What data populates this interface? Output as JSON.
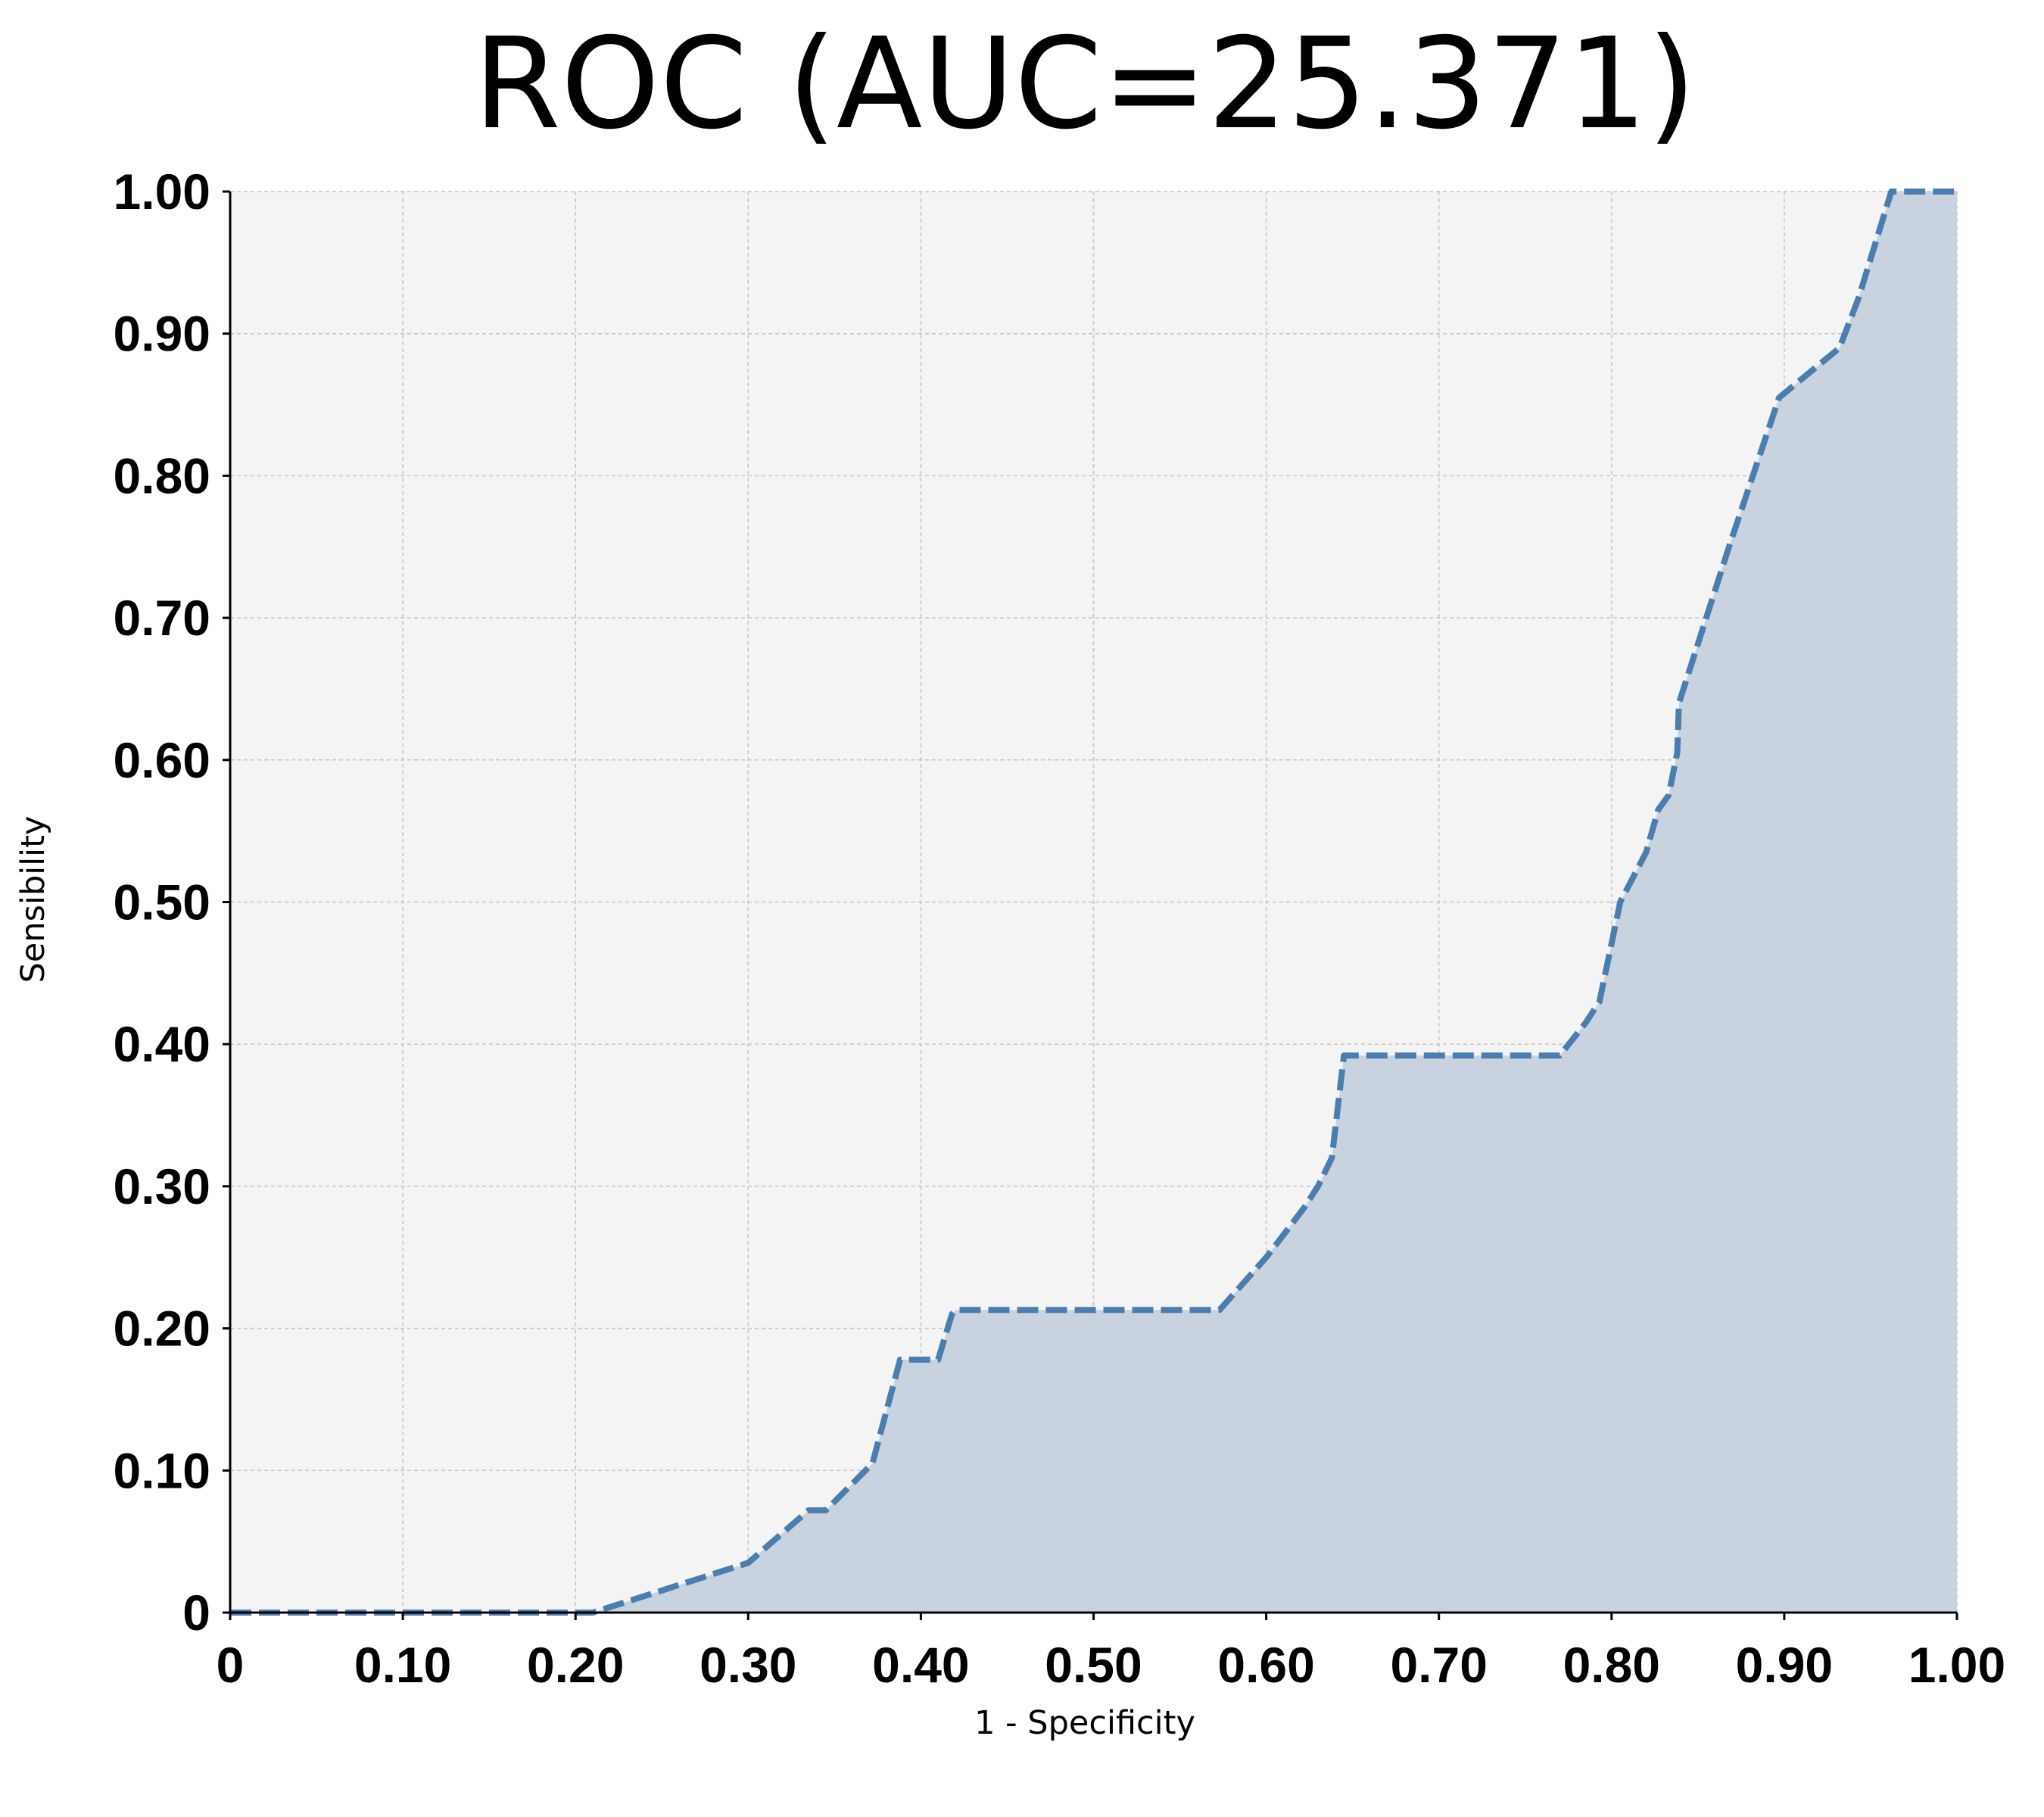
{
  "chart_data": {
    "type": "area",
    "title": "ROC (AUC=25.371)",
    "xlabel": "1 - Specificity",
    "ylabel": "Sensibility",
    "xlim": [
      0,
      1
    ],
    "ylim": [
      0,
      1
    ],
    "grid": true,
    "x_ticks": [
      "0",
      "0.10",
      "0.20",
      "0.30",
      "0.40",
      "0.50",
      "0.60",
      "0.70",
      "0.80",
      "0.90",
      "1.00"
    ],
    "y_ticks": [
      "0",
      "0.10",
      "0.20",
      "0.30",
      "0.40",
      "0.50",
      "0.60",
      "0.70",
      "0.80",
      "0.90",
      "1.00"
    ],
    "series": [
      {
        "style": "dashed",
        "color": "#4a7db0",
        "fill_color": "#c9d3df",
        "x": [
          0,
          0.21,
          0.3,
          0.335,
          0.345,
          0.372,
          0.388,
          0.41,
          0.418,
          0.42,
          0.573,
          0.6,
          0.622,
          0.63,
          0.638,
          0.645,
          0.77,
          0.785,
          0.793,
          0.805,
          0.82,
          0.827,
          0.833,
          0.838,
          0.839,
          0.868,
          0.897,
          0.932,
          0.943,
          0.962,
          1.0
        ],
        "y": [
          0,
          0,
          0.035,
          0.072,
          0.072,
          0.105,
          0.178,
          0.178,
          0.21,
          0.213,
          0.213,
          0.25,
          0.285,
          0.3,
          0.32,
          0.392,
          0.392,
          0.415,
          0.43,
          0.5,
          0.535,
          0.565,
          0.575,
          0.605,
          0.64,
          0.75,
          0.855,
          0.89,
          0.925,
          1.0,
          1.0
        ]
      }
    ]
  }
}
